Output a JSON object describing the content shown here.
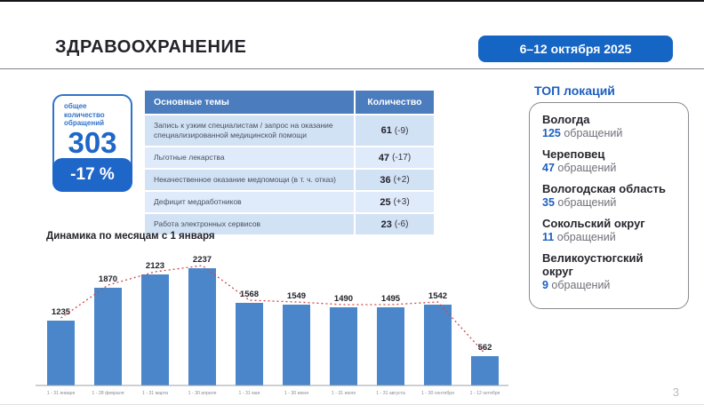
{
  "header": {
    "title": "ЗДРАВООХРАНЕНИЕ",
    "date_badge": "6–12 октября 2025",
    "page_number": "3"
  },
  "summary": {
    "label": "общее количество обращений",
    "value": "303",
    "change": "-17 %"
  },
  "topics_table": {
    "headers": [
      "Основные темы",
      "Количество"
    ],
    "rows": [
      {
        "topic": "Запись к узким специалистам / запрос на оказание специализированной медицинской помощи",
        "count": "61",
        "delta": "(-9)"
      },
      {
        "topic": "Льготные лекарства",
        "count": "47",
        "delta": "(-17)"
      },
      {
        "topic": "Некачественное оказание медпомощи (в т. ч. отказ)",
        "count": "36",
        "delta": "(+2)"
      },
      {
        "topic": "Дефицит медработников",
        "count": "25",
        "delta": "(+3)"
      },
      {
        "topic": "Работа электронных сервисов",
        "count": "23",
        "delta": "(-6)"
      }
    ]
  },
  "top_locations": {
    "title": "ТОП локаций",
    "items": [
      {
        "name": "Вологда",
        "count": "125",
        "unit": "обращений"
      },
      {
        "name": "Череповец",
        "count": "47",
        "unit": "обращений"
      },
      {
        "name": "Вологодская область",
        "count": "35",
        "unit": "обращений"
      },
      {
        "name": "Сокольский округ",
        "count": "11",
        "unit": "обращений"
      },
      {
        "name": "Великоустюгский округ",
        "count": "9",
        "unit": "обращений"
      }
    ]
  },
  "chart_data": {
    "type": "bar",
    "title": "Динамика по месяцам с 1 января",
    "categories": [
      "1 - 31 января",
      "1 - 28 февраля",
      "1 - 31 марта",
      "1 - 30 апреля",
      "1 - 31 мая",
      "1 - 30 июня",
      "1 - 31 июля",
      "1 - 31 августа",
      "1 - 30 сентября",
      "1 - 12 октября"
    ],
    "values": [
      1235,
      1870,
      2123,
      2237,
      1568,
      1549,
      1490,
      1495,
      1542,
      562
    ],
    "ylim": [
      0,
      2400
    ],
    "grid": false,
    "legend": false,
    "bar_color": "#4a86c9",
    "trend_line_color": "#cf4a44",
    "trend_line_style": "dotted",
    "value_label_color": "#22222b",
    "axis_label_color": "#8a8a94"
  },
  "colors": {
    "accent_blue": "#1f66c9",
    "table_header_blue": "#4a7cbe",
    "row_light": "#dfeafa",
    "row_dark": "#d2e2f5",
    "bar_blue": "#4a86c9",
    "trend_red": "#cf4a44",
    "title_dark": "#23232b"
  }
}
